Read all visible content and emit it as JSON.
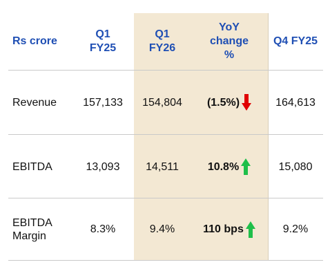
{
  "header": {
    "col1": "Rs crore",
    "col2_line1": "Q1",
    "col2_line2": "FY25",
    "col3_line1": "Q1",
    "col3_line2": "FY26",
    "col4_line1": "YoY",
    "col4_line2": "change",
    "col4_line3": "%",
    "col5": "Q4 FY25"
  },
  "rows": [
    {
      "label": "Revenue",
      "q1fy25": "157,133",
      "q1fy26": "154,804",
      "yoy": "(1.5%)",
      "trend_icon": "red-down-arrow-icon",
      "q4fy25": "164,613"
    },
    {
      "label": "EBITDA",
      "q1fy25": "13,093",
      "q1fy26": "14,511",
      "yoy": "10.8%",
      "trend_icon": "green-up-arrow-icon",
      "q4fy25": "15,080"
    },
    {
      "label_line1": "EBITDA",
      "label_line2": "Margin",
      "q1fy25": "8.3%",
      "q1fy26": "9.4%",
      "yoy": "110 bps",
      "trend_icon": "green-up-arrow-icon",
      "q4fy25": "9.2%"
    }
  ],
  "colors": {
    "header_text": "#1f4fb4",
    "highlight": "#f3e8d3",
    "up": "#1fbf4a",
    "down": "#e00000"
  }
}
